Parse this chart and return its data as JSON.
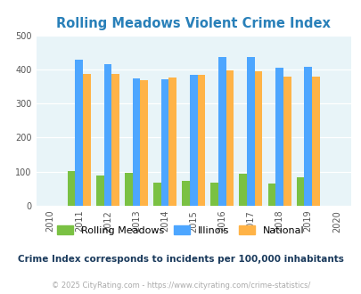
{
  "title": "Rolling Meadows Violent Crime Index",
  "years": [
    2011,
    2012,
    2013,
    2014,
    2015,
    2016,
    2017,
    2018,
    2019
  ],
  "rolling_meadows": [
    103,
    90,
    96,
    68,
    74,
    68,
    94,
    65,
    83
  ],
  "illinois": [
    428,
    415,
    374,
    371,
    384,
    437,
    437,
    406,
    408
  ],
  "national": [
    387,
    387,
    368,
    376,
    383,
    397,
    394,
    380,
    379
  ],
  "bar_colors": {
    "rolling_meadows": "#7ac143",
    "illinois": "#4da6ff",
    "national": "#ffb347"
  },
  "background_color": "#e8f4f8",
  "xlim": [
    2009.5,
    2020.5
  ],
  "ylim": [
    0,
    500
  ],
  "yticks": [
    0,
    100,
    200,
    300,
    400,
    500
  ],
  "legend_labels": [
    "Rolling Meadows",
    "Illinois",
    "National"
  ],
  "footnote1": "Crime Index corresponds to incidents per 100,000 inhabitants",
  "footnote2": "© 2025 CityRating.com - https://www.cityrating.com/crime-statistics/",
  "title_color": "#2980b9",
  "footnote1_color": "#1a3a5c",
  "footnote2_color": "#aaaaaa"
}
